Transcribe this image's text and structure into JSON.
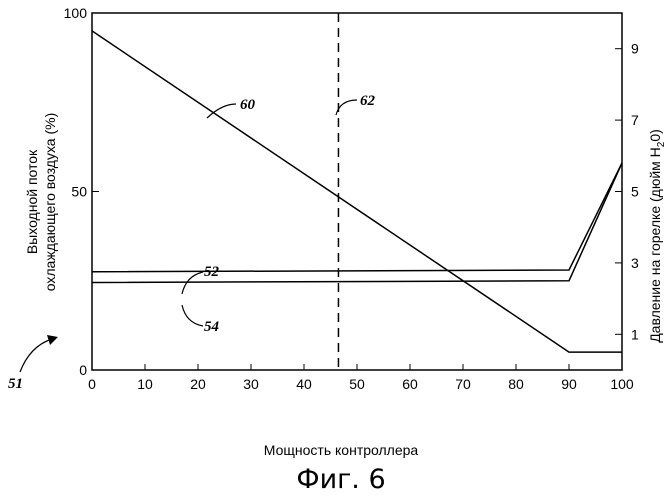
{
  "chart_data": {
    "type": "line",
    "caption": "Фиг. 6",
    "xlabel": "Мощность контроллера",
    "ylabel_left_line1": "Выходной поток",
    "ylabel_left_line2": "охлаждающего воздуха (%)",
    "ylabel_right": "Давление на горелке (дюйм H",
    "ylabel_right_sub": "2",
    "ylabel_right_tail": "0)",
    "xlim": [
      0,
      100
    ],
    "ylim_left": [
      0,
      100
    ],
    "ylim_right": [
      0,
      10
    ],
    "x_ticks": [
      "0",
      "10",
      "20",
      "30",
      "40",
      "50",
      "60",
      "70",
      "80",
      "90",
      "100"
    ],
    "y_left_ticks": [
      "0",
      "50",
      "100"
    ],
    "y_right_ticks": [
      "1",
      "3",
      "5",
      "7",
      "9"
    ],
    "figure_label": "51",
    "series": [
      {
        "name": "60",
        "axis": "left",
        "x": [
          0,
          90,
          100
        ],
        "y": [
          95,
          5,
          5
        ]
      },
      {
        "name": "52",
        "axis": "left",
        "x": [
          0,
          90,
          100
        ],
        "y": [
          27.5,
          28,
          58
        ]
      },
      {
        "name": "54",
        "axis": "left",
        "x": [
          0,
          90,
          100
        ],
        "y": [
          24.5,
          25,
          58
        ]
      }
    ],
    "vline": {
      "name": "62",
      "x": 46.5,
      "style": "dashed"
    }
  }
}
